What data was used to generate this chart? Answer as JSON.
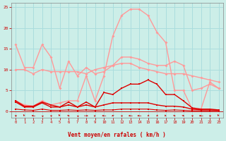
{
  "bg_color": "#cceee8",
  "grid_color": "#aadddd",
  "xlabel": "Vent moyen/en rafales ( km/h )",
  "xlabel_color": "#cc0000",
  "tick_color": "#cc0000",
  "xlim": [
    -0.5,
    23.5
  ],
  "ylim": [
    -1.5,
    26
  ],
  "yticks": [
    0,
    5,
    10,
    15,
    20,
    25
  ],
  "xticks": [
    0,
    1,
    2,
    3,
    4,
    5,
    6,
    7,
    8,
    9,
    10,
    11,
    12,
    13,
    14,
    15,
    16,
    17,
    18,
    19,
    20,
    21,
    22,
    23
  ],
  "lines": [
    {
      "x": [
        0,
        1,
        2,
        3,
        4,
        5,
        6,
        7,
        8,
        9,
        10,
        11,
        12,
        13,
        14,
        15,
        16,
        17,
        18,
        19,
        20,
        21,
        22,
        23
      ],
      "y": [
        2.5,
        1.2,
        1.2,
        2.2,
        1.5,
        1.0,
        2.2,
        1.0,
        2.2,
        1.0,
        4.5,
        4.0,
        5.5,
        6.5,
        6.5,
        7.5,
        6.5,
        4.0,
        4.0,
        2.5,
        0.8,
        0.5,
        0.5,
        0.3
      ],
      "color": "#dd0000",
      "lw": 1.0,
      "marker": "s",
      "ms": 2.0,
      "zorder": 4
    },
    {
      "x": [
        0,
        1,
        2,
        3,
        4,
        5,
        6,
        7,
        8,
        9,
        10,
        11,
        12,
        13,
        14,
        15,
        16,
        17,
        18,
        19,
        20,
        21,
        22,
        23
      ],
      "y": [
        2.2,
        1.0,
        1.0,
        2.0,
        1.0,
        1.0,
        1.5,
        1.0,
        1.5,
        1.0,
        1.5,
        2.0,
        2.0,
        2.0,
        2.0,
        2.0,
        1.5,
        1.2,
        1.2,
        1.0,
        0.5,
        0.3,
        0.3,
        0.2
      ],
      "color": "#dd0000",
      "lw": 1.0,
      "marker": "s",
      "ms": 2.0,
      "zorder": 4
    },
    {
      "x": [
        0,
        1,
        2,
        3,
        4,
        5,
        6,
        7,
        8,
        9,
        10,
        11,
        12,
        13,
        14,
        15,
        16,
        17,
        18,
        19,
        20,
        21,
        22,
        23
      ],
      "y": [
        0.5,
        0.3,
        0.2,
        0.5,
        0.2,
        0.2,
        0.3,
        0.2,
        0.3,
        0.2,
        0.3,
        0.3,
        0.5,
        0.5,
        0.5,
        0.5,
        0.3,
        0.2,
        0.3,
        0.2,
        0.1,
        0.1,
        0.1,
        0.1
      ],
      "color": "#dd0000",
      "lw": 0.8,
      "marker": "s",
      "ms": 1.5,
      "zorder": 4
    },
    {
      "x": [
        0,
        1,
        2,
        3,
        4,
        5,
        6,
        7,
        8,
        9,
        10,
        11,
        12,
        13,
        14,
        15,
        16,
        17,
        18,
        19,
        20,
        21,
        22,
        23
      ],
      "y": [
        16.0,
        10.5,
        10.5,
        16.0,
        13.0,
        5.5,
        12.0,
        8.5,
        10.5,
        9.0,
        9.5,
        11.0,
        13.0,
        13.0,
        12.5,
        11.5,
        11.0,
        11.0,
        12.0,
        11.0,
        5.0,
        5.5,
        6.5,
        5.5
      ],
      "color": "#ff9999",
      "lw": 1.0,
      "marker": "D",
      "ms": 2.0,
      "zorder": 3
    },
    {
      "x": [
        0,
        1,
        2,
        3,
        4,
        5,
        6,
        7,
        8,
        9,
        10,
        11,
        12,
        13,
        14,
        15,
        16,
        17,
        18,
        19,
        20,
        21,
        22,
        23
      ],
      "y": [
        2.5,
        1.5,
        1.2,
        2.5,
        1.5,
        2.0,
        2.5,
        2.5,
        8.5,
        2.5,
        8.5,
        18.0,
        23.0,
        24.5,
        24.5,
        23.0,
        19.0,
        16.5,
        5.0,
        5.0,
        0.5,
        0.5,
        7.0,
        5.5
      ],
      "color": "#ff9999",
      "lw": 1.0,
      "marker": "D",
      "ms": 2.0,
      "zorder": 3
    },
    {
      "x": [
        0,
        1,
        2,
        3,
        4,
        5,
        6,
        7,
        8,
        9,
        10,
        11,
        12,
        13,
        14,
        15,
        16,
        17,
        18,
        19,
        20,
        21,
        22,
        23
      ],
      "y": [
        10.0,
        10.0,
        9.0,
        10.0,
        9.5,
        9.5,
        9.5,
        9.5,
        9.0,
        10.0,
        10.5,
        11.0,
        11.5,
        11.5,
        10.5,
        10.0,
        9.5,
        9.0,
        9.0,
        9.0,
        8.5,
        8.0,
        7.5,
        7.0
      ],
      "color": "#ff9999",
      "lw": 1.0,
      "marker": "D",
      "ms": 2.0,
      "zorder": 3
    }
  ],
  "wind_directions": [
    225,
    200,
    250,
    210,
    220,
    200,
    50,
    210,
    85,
    140,
    265,
    310,
    220,
    265,
    265,
    320,
    320,
    40,
    50,
    50,
    220,
    265,
    220,
    200
  ]
}
